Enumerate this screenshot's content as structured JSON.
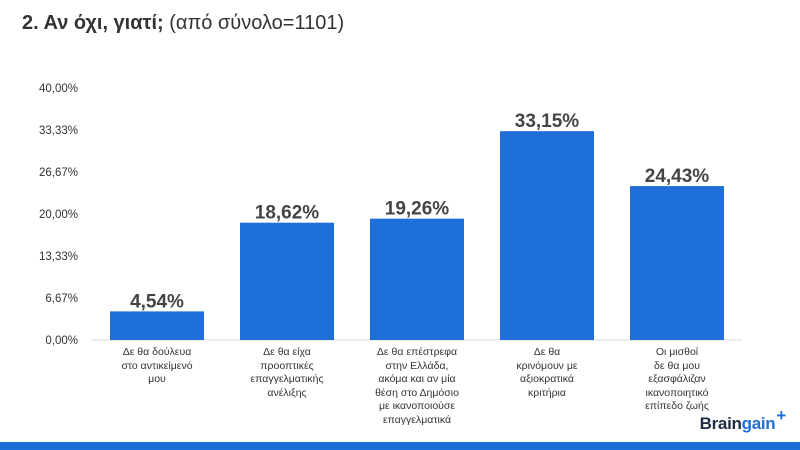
{
  "header": {
    "title_bold": "2. Αν όχι, γιατί;",
    "title_sub": "(από σύνολο=1101)"
  },
  "chart_data": {
    "type": "bar",
    "title": "2. Αν όχι, γιατί; (από σύνολο=1101)",
    "xlabel": "",
    "ylabel": "",
    "ylim": [
      0,
      40
    ],
    "grid": false,
    "yticks": [
      "0,00%",
      "6,67%",
      "13,33%",
      "20,00%",
      "26,67%",
      "33,33%",
      "40,00%"
    ],
    "ytick_values": [
      0,
      6.67,
      13.33,
      20,
      26.67,
      33.33,
      40
    ],
    "categories": [
      "Δε θα δούλευα\nστο αντικείμενό\nμου",
      "Δε θα είχα\nπροοπτικές\nεπαγγελματικής\nανέλιξης",
      "Δε θα επέστρεφα\nστην Ελλάδα,\nακόμα και αν μία\nθέση στο Δημόσιο\nμε ικανοποιούσε\nεπαγγελματικά",
      "Δε θα\nκρινόμουν με\nαξιοκρατικά\nκριτήρια",
      "Οι μισθοί\nδε θα μου\nεξασφάλιζαν\nικανοποιητικό\nεπίπεδο ζωής"
    ],
    "values": [
      4.54,
      18.62,
      19.26,
      33.15,
      24.43
    ],
    "data_labels": [
      "4,54%",
      "18,62%",
      "19,26%",
      "33,15%",
      "24,43%"
    ],
    "bar_color": "#1f6fd8"
  },
  "logo": {
    "part1": "Brain",
    "part2": "gain",
    "plus": "+"
  },
  "colors": {
    "accent": "#1f6fd8",
    "text": "#333333"
  }
}
